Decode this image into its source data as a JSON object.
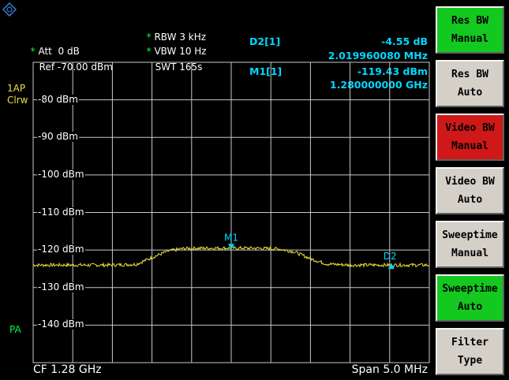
{
  "header": {
    "att_label": "Att",
    "att_value": "0 dB",
    "ref_label": "Ref",
    "ref_value": "-70.00 dBm",
    "rbw_label": "RBW",
    "rbw_value": "3 kHz",
    "vbw_label": "VBW",
    "vbw_value": "10 Hz",
    "swt_label": "SWT",
    "swt_value": "165s",
    "star": "*"
  },
  "markers": {
    "d2_name": "D2[1]",
    "d2_level": "-4.55 dB",
    "d2_freq": "2.019960080 MHz",
    "m1_name": "M1[1]",
    "m1_level": "-119.43 dBm",
    "m1_freq": "1.280000000 GHz",
    "m1_label": "M1",
    "d2_label": "D2"
  },
  "side": {
    "trace_mode1": "1AP",
    "trace_mode2": "Clrw",
    "pa": "PA"
  },
  "y_axis": [
    "-80 dBm",
    "-90 dBm",
    "-100 dBm",
    "-110 dBm",
    "-120 dBm",
    "-130 dBm",
    "-140 dBm"
  ],
  "footer": {
    "cf": "CF 1.28 GHz",
    "span": "Span 5.0 MHz"
  },
  "softkeys": [
    {
      "line1": "Res BW",
      "line2": "Manual",
      "state": "green"
    },
    {
      "line1": "Res BW",
      "line2": "Auto",
      "state": "normal"
    },
    {
      "line1": "Video BW",
      "line2": "Manual",
      "state": "red"
    },
    {
      "line1": "Video BW",
      "line2": "Auto",
      "state": "normal"
    },
    {
      "line1": "Sweeptime",
      "line2": "Manual",
      "state": "normal"
    },
    {
      "line1": "Sweeptime",
      "line2": "Auto",
      "state": "green"
    },
    {
      "line1": "Filter",
      "line2": "Type",
      "state": "normal"
    }
  ],
  "colors": {
    "trace": "#e6e23c",
    "marker": "#00d8ff",
    "grid": "#c8c8c8",
    "accent_green": "#00ff44"
  },
  "chart_data": {
    "type": "line",
    "xlabel": "",
    "ylabel": "",
    "x_unit": "MHz offset from CF",
    "xlim": [
      -2.5,
      2.5
    ],
    "ylim": [
      -150,
      -70
    ],
    "series": [
      {
        "x": [
          -2.5,
          -2.0,
          -1.5,
          -1.2,
          -1.0,
          -0.8,
          -0.6,
          -0.3,
          0.0,
          0.3,
          0.6,
          0.8,
          1.0,
          1.2,
          1.5,
          2.0,
          2.5
        ],
        "values": [
          -124.0,
          -124.0,
          -124.0,
          -123.8,
          -122.0,
          -120.3,
          -119.6,
          -119.5,
          -119.5,
          -119.5,
          -119.7,
          -120.5,
          -122.3,
          -123.7,
          -124.0,
          -124.0,
          -124.0
        ]
      }
    ],
    "markers": [
      {
        "x": 0.0,
        "y": -119.43
      },
      {
        "x": 2.02,
        "y": -123.98
      }
    ]
  }
}
